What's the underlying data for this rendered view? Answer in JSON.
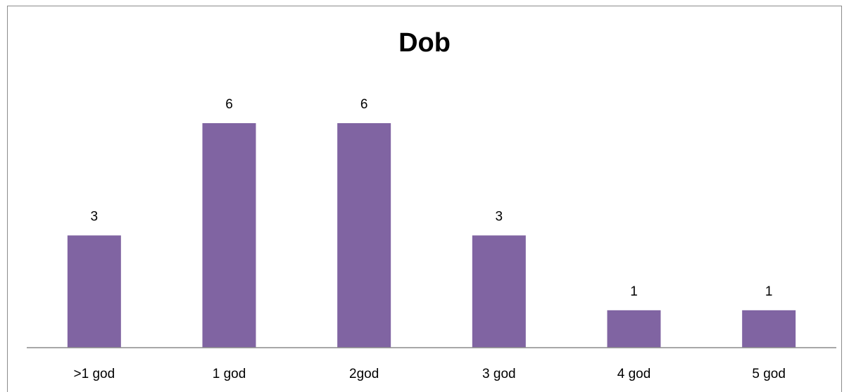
{
  "chart_data": {
    "type": "bar",
    "title": "Dob",
    "categories": [
      ">1 god",
      "1 god",
      "2god",
      "3 god",
      "4 god",
      "5 god"
    ],
    "values": [
      3,
      6,
      6,
      3,
      1,
      1
    ],
    "data_labels": true,
    "xlabel": "",
    "ylabel": "",
    "ylim": [
      0,
      6
    ],
    "grid": false,
    "legend": "none",
    "bar_color": "#8064a2",
    "axis_color": "#8c8c8c"
  }
}
